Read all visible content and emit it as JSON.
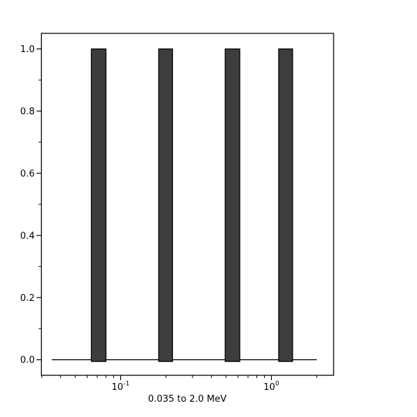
{
  "chart_data": {
    "type": "bar",
    "title": "",
    "xlabel": "0.035 to 2.0 MeV",
    "ylabel": "",
    "x_scale": "log",
    "y_scale": "linear",
    "xlim": [
      0.0298,
      2.55
    ],
    "ylim": [
      -0.05,
      1.05
    ],
    "x_data_range": [
      0.035,
      2.0
    ],
    "grid": false,
    "legend": null,
    "bars": [
      {
        "x_min": 0.064,
        "x_max": 0.08,
        "x_center": 0.072,
        "value": 1.0
      },
      {
        "x_min": 0.179,
        "x_max": 0.221,
        "x_center": 0.199,
        "value": 1.0
      },
      {
        "x_min": 0.494,
        "x_max": 0.617,
        "x_center": 0.552,
        "value": 1.0
      },
      {
        "x_min": 1.118,
        "x_max": 1.382,
        "x_center": 1.243,
        "value": 1.0
      }
    ],
    "baseline": {
      "y": 0.0,
      "x_min": 0.035,
      "x_max": 2.0
    },
    "y_ticks_major": [
      0.0,
      0.2,
      0.4,
      0.6,
      0.8,
      1.0
    ],
    "y_ticks_minor": [
      0.1,
      0.3,
      0.5,
      0.7,
      0.9
    ],
    "x_ticks_major": [
      {
        "value": 0.1,
        "base": "10",
        "exponent": "-1"
      },
      {
        "value": 1.0,
        "base": "10",
        "exponent": "0"
      }
    ],
    "x_ticks_minor": [
      0.03,
      0.04,
      0.05,
      0.06,
      0.07,
      0.08,
      0.09,
      0.2,
      0.3,
      0.4,
      0.5,
      0.6,
      0.7,
      0.8,
      0.9,
      2.0
    ],
    "colors": {
      "bar_fill": "#3d3d3d",
      "bar_edge": "#000000",
      "axis": "#000000",
      "text": "#000000",
      "background": "#ffffff"
    }
  }
}
